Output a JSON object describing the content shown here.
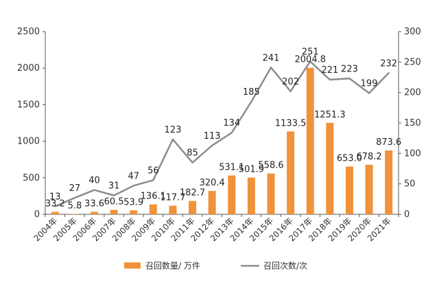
{
  "chart_data": {
    "type": "bar+line",
    "categories": [
      "2004年",
      "2005年",
      "2006年",
      "2007年",
      "2008年",
      "2009年",
      "2010年",
      "2011年",
      "2012年",
      "2013年",
      "2014年",
      "2015年",
      "2016年",
      "2017年",
      "2018年",
      "2019年",
      "2020年",
      "2021年"
    ],
    "series": [
      {
        "name": "召回数量/ 万件",
        "type": "bar",
        "axis": "left",
        "color": "#f0923a",
        "values": [
          33.2,
          5.8,
          33.6,
          60.5,
          53.9,
          136.1,
          117.7,
          182.7,
          320.4,
          531.1,
          501.9,
          558.6,
          1133.5,
          2004.8,
          1251.3,
          653.0,
          678.2,
          873.6
        ],
        "labels": [
          "33.2",
          "5.8",
          "33.6",
          "60.5",
          "53.9",
          "136.1",
          "117.7",
          "182.7",
          "320.4",
          "531.1",
          "501.9",
          "558.6",
          "1133.5",
          "2004.8",
          "1251.3",
          "653.0",
          "678.2",
          "873.6"
        ]
      },
      {
        "name": "召回次数/次",
        "type": "line",
        "axis": "right",
        "color": "#8c8c8c",
        "values": [
          13,
          27,
          40,
          31,
          47,
          56,
          123,
          85,
          113,
          134,
          185,
          241,
          202,
          251,
          221,
          223,
          199,
          232
        ],
        "labels": [
          "13",
          "27",
          "40",
          "31",
          "47",
          "56",
          "123",
          "85",
          "113",
          "134",
          "185",
          "241",
          "202",
          "251",
          "221",
          "223",
          "199",
          "232"
        ]
      }
    ],
    "y_left": {
      "range": [
        0,
        2500
      ],
      "ticks": [
        "0",
        "500",
        "1000",
        "1500",
        "2000",
        "2500"
      ]
    },
    "y_right": {
      "range": [
        0,
        300
      ],
      "ticks": [
        "0",
        "50",
        "100",
        "150",
        "200",
        "250",
        "300"
      ]
    },
    "grid": false,
    "legend_position": "bottom"
  }
}
